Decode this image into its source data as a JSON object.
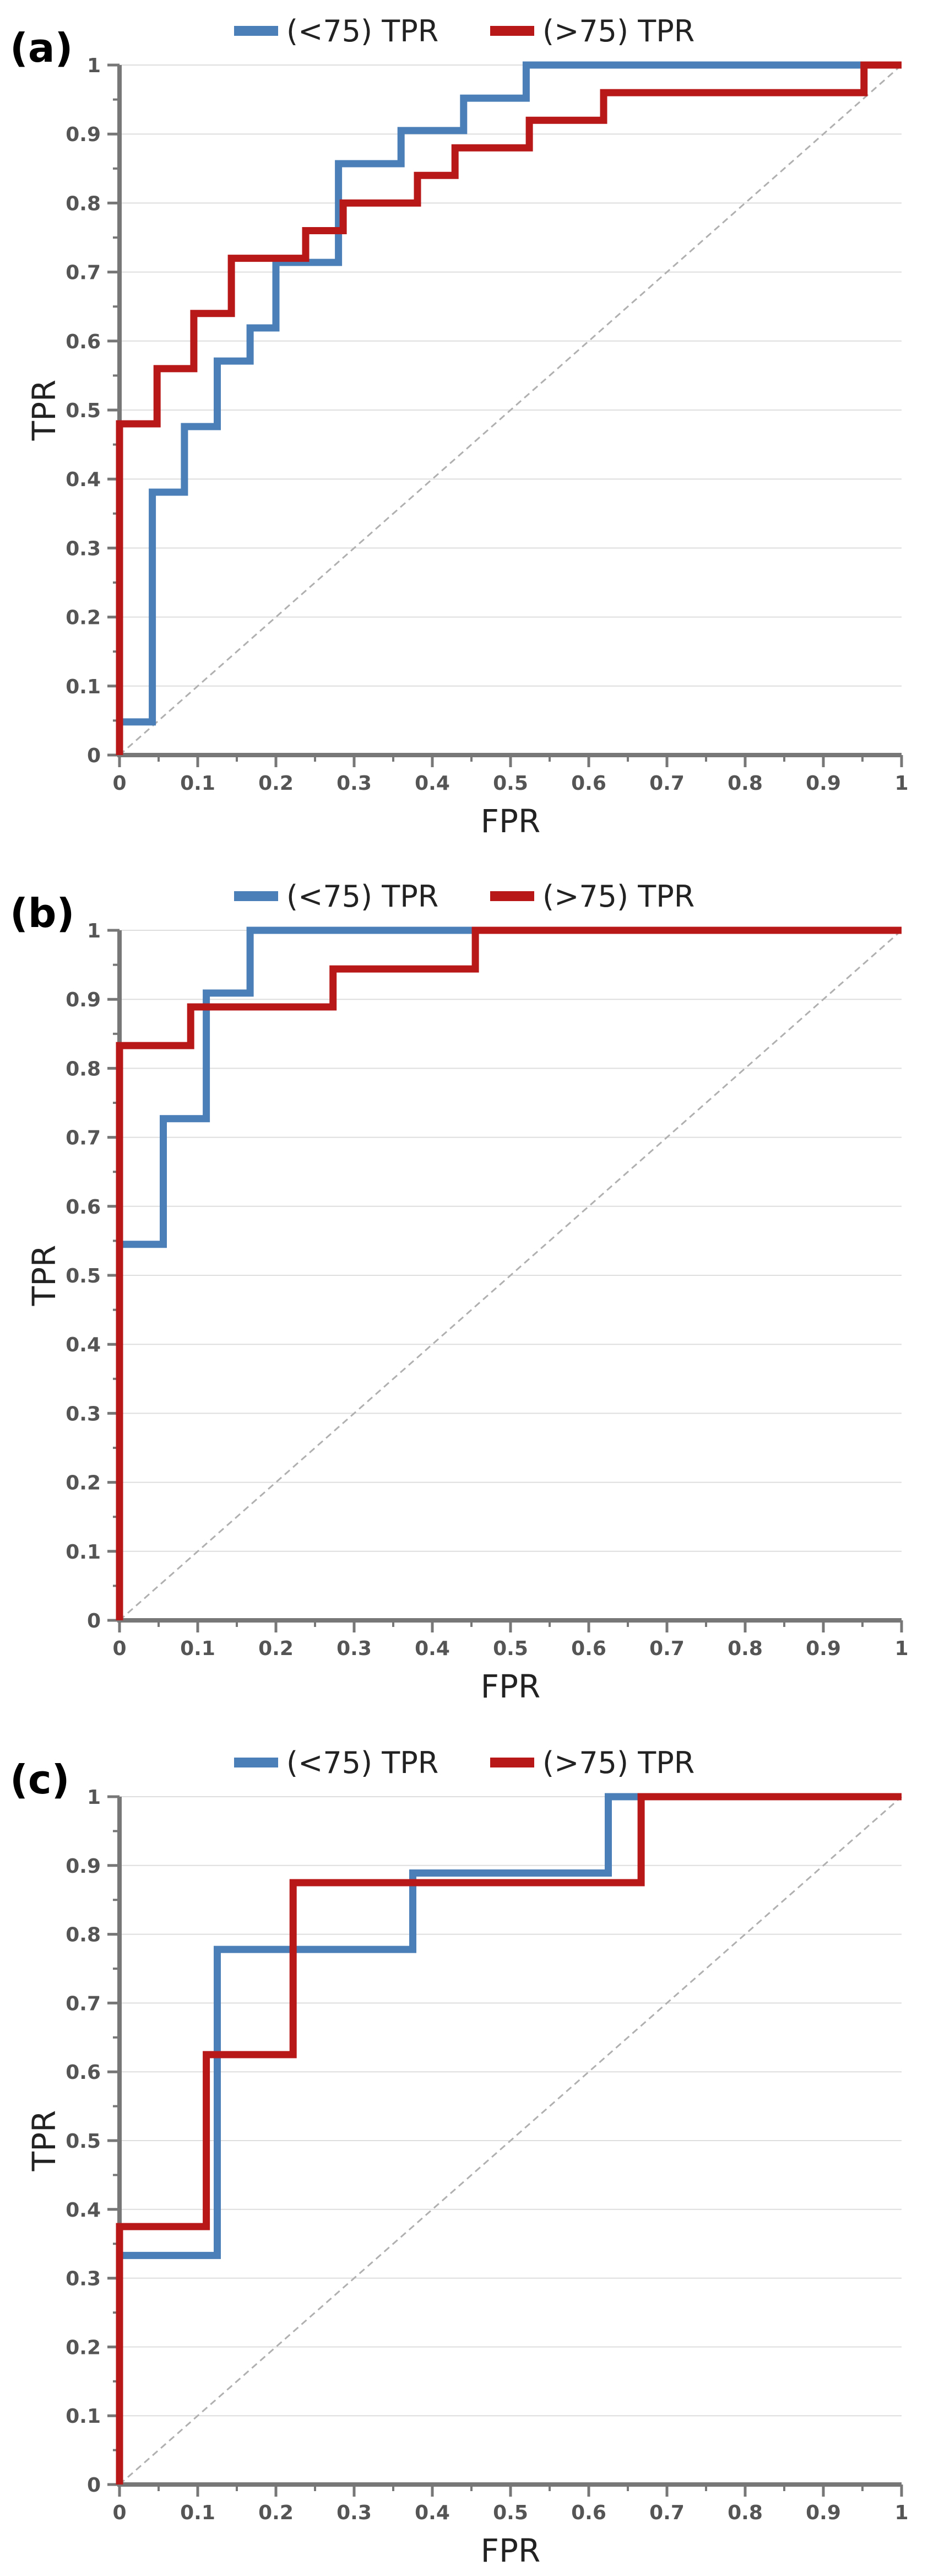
{
  "chart_data": [
    {
      "panel_label": "(a)",
      "type": "line",
      "title": "",
      "xlabel": "FPR",
      "ylabel": "TPR",
      "xlim": [
        0,
        1
      ],
      "ylim": [
        0,
        1
      ],
      "x_ticks": [
        "0",
        "0.1",
        "0.2",
        "0.3",
        "0.4",
        "0.5",
        "0.6",
        "0.7",
        "0.8",
        "0.9",
        "1"
      ],
      "y_ticks": [
        "0",
        "0.1",
        "0.2",
        "0.3",
        "0.4",
        "0.5",
        "0.6",
        "0.7",
        "0.8",
        "0.9",
        "1"
      ],
      "grid": true,
      "legend": "top-center",
      "diagonal": true,
      "series": [
        {
          "name": "(<75) TPR",
          "color": "#4a7fb8",
          "x": [
            0,
            0,
            0.042,
            0.042,
            0.083,
            0.083,
            0.125,
            0.125,
            0.167,
            0.167,
            0.2,
            0.2,
            0.28,
            0.28,
            0.36,
            0.36,
            0.44,
            0.44,
            0.52,
            0.52,
            1
          ],
          "y": [
            0,
            0.048,
            0.048,
            0.381,
            0.381,
            0.476,
            0.476,
            0.571,
            0.571,
            0.619,
            0.619,
            0.714,
            0.714,
            0.857,
            0.857,
            0.905,
            0.905,
            0.952,
            0.952,
            1,
            1
          ]
        },
        {
          "name": "(>75) TPR",
          "color": "#b81818",
          "x": [
            0,
            0,
            0.048,
            0.048,
            0.095,
            0.095,
            0.143,
            0.143,
            0.238,
            0.238,
            0.286,
            0.286,
            0.381,
            0.381,
            0.429,
            0.429,
            0.524,
            0.524,
            0.619,
            0.619,
            0.952,
            0.952,
            1
          ],
          "y": [
            0,
            0.48,
            0.48,
            0.56,
            0.56,
            0.64,
            0.64,
            0.72,
            0.72,
            0.76,
            0.76,
            0.8,
            0.8,
            0.84,
            0.84,
            0.88,
            0.88,
            0.92,
            0.92,
            0.96,
            0.96,
            1,
            1
          ]
        }
      ]
    },
    {
      "panel_label": "(b)",
      "type": "line",
      "title": "",
      "xlabel": "FPR",
      "ylabel": "TPR",
      "xlim": [
        0,
        1
      ],
      "ylim": [
        0,
        1
      ],
      "x_ticks": [
        "0",
        "0.1",
        "0.2",
        "0.3",
        "0.4",
        "0.5",
        "0.6",
        "0.7",
        "0.8",
        "0.9",
        "1"
      ],
      "y_ticks": [
        "0",
        "0.1",
        "0.2",
        "0.3",
        "0.4",
        "0.5",
        "0.6",
        "0.7",
        "0.8",
        "0.9",
        "1"
      ],
      "grid": true,
      "legend": "top-center",
      "diagonal": true,
      "series": [
        {
          "name": "(<75) TPR",
          "color": "#4a7fb8",
          "x": [
            0,
            0,
            0.056,
            0.056,
            0.111,
            0.111,
            0.167,
            0.167,
            1
          ],
          "y": [
            0,
            0.545,
            0.545,
            0.727,
            0.727,
            0.909,
            0.909,
            1,
            1
          ]
        },
        {
          "name": "(>75) TPR",
          "color": "#b81818",
          "x": [
            0,
            0,
            0.091,
            0.091,
            0.273,
            0.273,
            0.455,
            0.455,
            1
          ],
          "y": [
            0,
            0.833,
            0.833,
            0.889,
            0.889,
            0.944,
            0.944,
            1,
            1
          ]
        }
      ]
    },
    {
      "panel_label": "(c)",
      "type": "line",
      "title": "",
      "xlabel": "FPR",
      "ylabel": "TPR",
      "xlim": [
        0,
        1
      ],
      "ylim": [
        0,
        1
      ],
      "x_ticks": [
        "0",
        "0.1",
        "0.2",
        "0.3",
        "0.4",
        "0.5",
        "0.6",
        "0.7",
        "0.8",
        "0.9",
        "1"
      ],
      "y_ticks": [
        "0",
        "0.1",
        "0.2",
        "0.3",
        "0.4",
        "0.5",
        "0.6",
        "0.7",
        "0.8",
        "0.9",
        "1"
      ],
      "grid": true,
      "legend": "top-center",
      "diagonal": true,
      "series": [
        {
          "name": "(<75) TPR",
          "color": "#4a7fb8",
          "x": [
            0,
            0,
            0.125,
            0.125,
            0.375,
            0.375,
            0.625,
            0.625,
            1
          ],
          "y": [
            0,
            0.333,
            0.333,
            0.778,
            0.778,
            0.889,
            0.889,
            1,
            1
          ]
        },
        {
          "name": "(>75) TPR",
          "color": "#b81818",
          "x": [
            0,
            0,
            0.111,
            0.111,
            0.222,
            0.222,
            0.667,
            0.667,
            1
          ],
          "y": [
            0,
            0.375,
            0.375,
            0.625,
            0.625,
            0.875,
            0.875,
            1,
            1
          ]
        }
      ]
    }
  ]
}
